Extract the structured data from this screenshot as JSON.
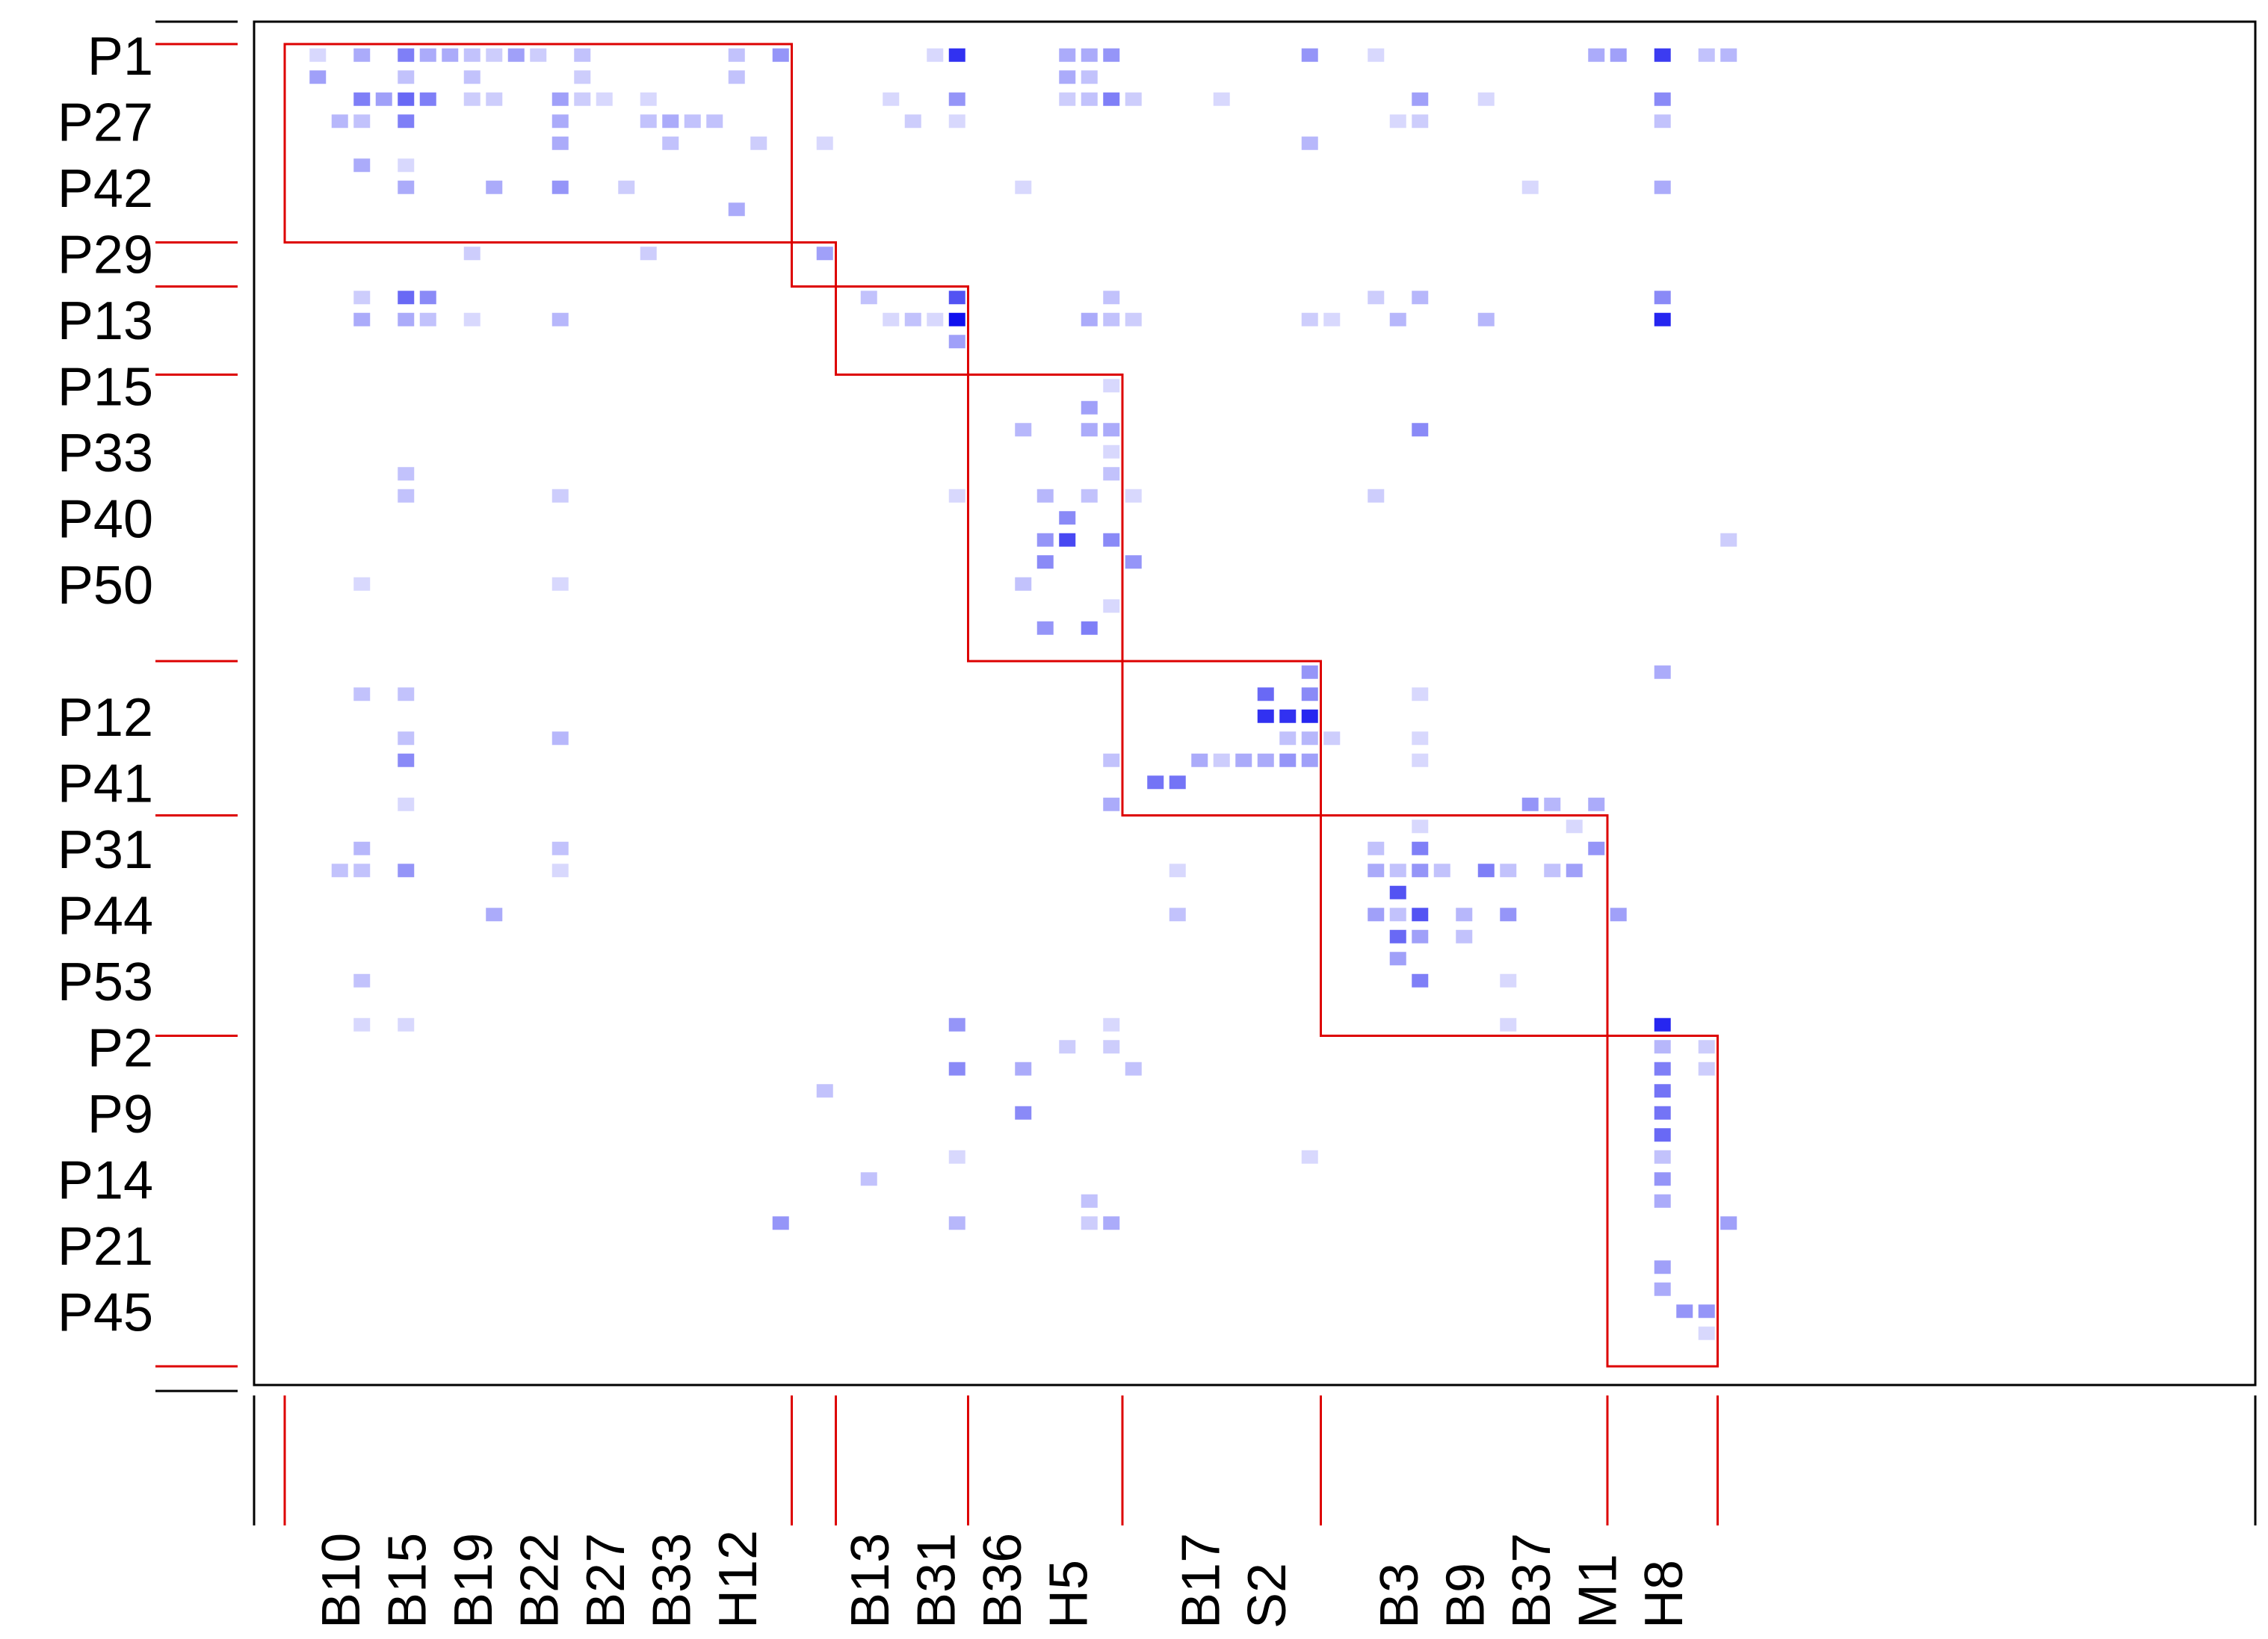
{
  "chart_data": {
    "type": "heatmap",
    "title": "",
    "xlabel": "",
    "ylabel": "",
    "n_rows": 61,
    "n_cols": 66,
    "grid": false,
    "colors": {
      "low": "#eeeeff",
      "high": "#1010ee",
      "block_outline": "#dd0000",
      "frame": "#000000"
    },
    "row_tick_labels": [
      {
        "label": "P1",
        "row": 0
      },
      {
        "label": "P27",
        "row": 3
      },
      {
        "label": "P42",
        "row": 6
      },
      {
        "label": "P29",
        "row": 9
      },
      {
        "label": "P13",
        "row": 12
      },
      {
        "label": "P15",
        "row": 15
      },
      {
        "label": "P33",
        "row": 18
      },
      {
        "label": "P40",
        "row": 21
      },
      {
        "label": "P50",
        "row": 24
      },
      {
        "label": "P12",
        "row": 30
      },
      {
        "label": "P41",
        "row": 33
      },
      {
        "label": "P31",
        "row": 36
      },
      {
        "label": "P44",
        "row": 39
      },
      {
        "label": "P53",
        "row": 42
      },
      {
        "label": "P2",
        "row": 45
      },
      {
        "label": "P9",
        "row": 48
      },
      {
        "label": "P14",
        "row": 51
      },
      {
        "label": "P21",
        "row": 54
      },
      {
        "label": "P45",
        "row": 57
      }
    ],
    "col_tick_labels": [
      {
        "label": "B10",
        "col": 2
      },
      {
        "label": "B15",
        "col": 5
      },
      {
        "label": "B19",
        "col": 8
      },
      {
        "label": "B22",
        "col": 11
      },
      {
        "label": "B27",
        "col": 14
      },
      {
        "label": "B33",
        "col": 17
      },
      {
        "label": "H12",
        "col": 20
      },
      {
        "label": "B13",
        "col": 26
      },
      {
        "label": "B31",
        "col": 29
      },
      {
        "label": "B36",
        "col": 32
      },
      {
        "label": "H5",
        "col": 35
      },
      {
        "label": "B17",
        "col": 41
      },
      {
        "label": "S2",
        "col": 44
      },
      {
        "label": "B3",
        "col": 50
      },
      {
        "label": "B9",
        "col": 53
      },
      {
        "label": "B37",
        "col": 56
      },
      {
        "label": "M1",
        "col": 59
      },
      {
        "label": "H8",
        "col": 62
      }
    ],
    "row_block_boundaries": [
      0,
      9,
      11,
      15,
      28,
      35,
      45,
      60
    ],
    "col_block_boundaries": [
      0,
      23,
      25,
      31,
      38,
      47,
      60,
      65
    ],
    "blocks": [
      {
        "rows": [
          0,
          9
        ],
        "cols": [
          0,
          23
        ]
      },
      {
        "rows": [
          9,
          11
        ],
        "cols": [
          23,
          25
        ]
      },
      {
        "rows": [
          11,
          15
        ],
        "cols": [
          25,
          31
        ]
      },
      {
        "rows": [
          15,
          28
        ],
        "cols": [
          31,
          38
        ]
      },
      {
        "rows": [
          28,
          35
        ],
        "cols": [
          38,
          47
        ]
      },
      {
        "rows": [
          35,
          45
        ],
        "cols": [
          47,
          60
        ]
      },
      {
        "rows": [
          45,
          60
        ],
        "cols": [
          60,
          65
        ]
      }
    ],
    "cells": [
      [
        0,
        1,
        0.1
      ],
      [
        0,
        3,
        0.3
      ],
      [
        0,
        5,
        0.5
      ],
      [
        0,
        6,
        0.3
      ],
      [
        0,
        7,
        0.3
      ],
      [
        0,
        8,
        0.2
      ],
      [
        0,
        9,
        0.15
      ],
      [
        0,
        10,
        0.35
      ],
      [
        0,
        11,
        0.15
      ],
      [
        0,
        13,
        0.2
      ],
      [
        0,
        20,
        0.2
      ],
      [
        0,
        22,
        0.4
      ],
      [
        0,
        29,
        0.1
      ],
      [
        0,
        30,
        0.85
      ],
      [
        0,
        35,
        0.3
      ],
      [
        0,
        36,
        0.3
      ],
      [
        0,
        37,
        0.4
      ],
      [
        0,
        46,
        0.4
      ],
      [
        0,
        49,
        0.1
      ],
      [
        0,
        59,
        0.3
      ],
      [
        0,
        60,
        0.35
      ],
      [
        0,
        62,
        0.8
      ],
      [
        0,
        64,
        0.2
      ],
      [
        0,
        65,
        0.25
      ],
      [
        1,
        1,
        0.35
      ],
      [
        1,
        5,
        0.2
      ],
      [
        1,
        8,
        0.2
      ],
      [
        1,
        13,
        0.15
      ],
      [
        1,
        20,
        0.2
      ],
      [
        1,
        35,
        0.3
      ],
      [
        1,
        36,
        0.2
      ],
      [
        2,
        3,
        0.5
      ],
      [
        2,
        4,
        0.35
      ],
      [
        2,
        5,
        0.6
      ],
      [
        2,
        6,
        0.5
      ],
      [
        2,
        8,
        0.15
      ],
      [
        2,
        9,
        0.15
      ],
      [
        2,
        12,
        0.35
      ],
      [
        2,
        13,
        0.15
      ],
      [
        2,
        14,
        0.1
      ],
      [
        2,
        16,
        0.1
      ],
      [
        2,
        27,
        0.1
      ],
      [
        2,
        30,
        0.4
      ],
      [
        2,
        35,
        0.15
      ],
      [
        2,
        36,
        0.2
      ],
      [
        2,
        37,
        0.5
      ],
      [
        2,
        38,
        0.15
      ],
      [
        2,
        42,
        0.1
      ],
      [
        2,
        51,
        0.35
      ],
      [
        2,
        54,
        0.1
      ],
      [
        2,
        62,
        0.45
      ],
      [
        3,
        2,
        0.25
      ],
      [
        3,
        3,
        0.2
      ],
      [
        3,
        5,
        0.5
      ],
      [
        3,
        12,
        0.3
      ],
      [
        3,
        16,
        0.2
      ],
      [
        3,
        17,
        0.3
      ],
      [
        3,
        18,
        0.2
      ],
      [
        3,
        19,
        0.2
      ],
      [
        3,
        28,
        0.15
      ],
      [
        3,
        30,
        0.1
      ],
      [
        3,
        50,
        0.1
      ],
      [
        3,
        51,
        0.15
      ],
      [
        3,
        62,
        0.2
      ],
      [
        4,
        12,
        0.3
      ],
      [
        4,
        17,
        0.2
      ],
      [
        4,
        21,
        0.15
      ],
      [
        4,
        24,
        0.1
      ],
      [
        4,
        46,
        0.25
      ],
      [
        5,
        3,
        0.3
      ],
      [
        5,
        5,
        0.1
      ],
      [
        6,
        5,
        0.3
      ],
      [
        6,
        9,
        0.3
      ],
      [
        6,
        12,
        0.4
      ],
      [
        6,
        15,
        0.15
      ],
      [
        6,
        33,
        0.1
      ],
      [
        6,
        56,
        0.1
      ],
      [
        6,
        62,
        0.3
      ],
      [
        7,
        20,
        0.3
      ],
      [
        9,
        8,
        0.15
      ],
      [
        9,
        16,
        0.15
      ],
      [
        9,
        24,
        0.35
      ],
      [
        11,
        3,
        0.15
      ],
      [
        11,
        5,
        0.6
      ],
      [
        11,
        6,
        0.45
      ],
      [
        11,
        26,
        0.2
      ],
      [
        11,
        30,
        0.7
      ],
      [
        11,
        37,
        0.2
      ],
      [
        11,
        49,
        0.15
      ],
      [
        11,
        51,
        0.25
      ],
      [
        11,
        62,
        0.45
      ],
      [
        12,
        3,
        0.3
      ],
      [
        12,
        5,
        0.3
      ],
      [
        12,
        6,
        0.2
      ],
      [
        12,
        8,
        0.1
      ],
      [
        12,
        12,
        0.25
      ],
      [
        12,
        27,
        0.1
      ],
      [
        12,
        28,
        0.2
      ],
      [
        12,
        29,
        0.1
      ],
      [
        12,
        30,
        1.0
      ],
      [
        12,
        36,
        0.3
      ],
      [
        12,
        37,
        0.2
      ],
      [
        12,
        38,
        0.15
      ],
      [
        12,
        46,
        0.15
      ],
      [
        12,
        47,
        0.1
      ],
      [
        12,
        50,
        0.25
      ],
      [
        12,
        54,
        0.25
      ],
      [
        12,
        62,
        0.9
      ],
      [
        13,
        30,
        0.35
      ],
      [
        15,
        37,
        0.1
      ],
      [
        16,
        36,
        0.35
      ],
      [
        17,
        33,
        0.25
      ],
      [
        17,
        36,
        0.3
      ],
      [
        17,
        37,
        0.3
      ],
      [
        17,
        51,
        0.45
      ],
      [
        18,
        37,
        0.1
      ],
      [
        19,
        5,
        0.2
      ],
      [
        19,
        37,
        0.2
      ],
      [
        20,
        5,
        0.2
      ],
      [
        20,
        12,
        0.15
      ],
      [
        20,
        30,
        0.1
      ],
      [
        20,
        34,
        0.25
      ],
      [
        20,
        36,
        0.2
      ],
      [
        20,
        38,
        0.1
      ],
      [
        20,
        49,
        0.15
      ],
      [
        21,
        35,
        0.45
      ],
      [
        22,
        34,
        0.4
      ],
      [
        22,
        35,
        0.75
      ],
      [
        22,
        37,
        0.45
      ],
      [
        22,
        65,
        0.15
      ],
      [
        23,
        34,
        0.45
      ],
      [
        23,
        38,
        0.4
      ],
      [
        24,
        3,
        0.1
      ],
      [
        24,
        12,
        0.1
      ],
      [
        24,
        33,
        0.2
      ],
      [
        25,
        37,
        0.1
      ],
      [
        26,
        34,
        0.4
      ],
      [
        26,
        36,
        0.5
      ],
      [
        28,
        46,
        0.4
      ],
      [
        28,
        62,
        0.3
      ],
      [
        29,
        3,
        0.2
      ],
      [
        29,
        5,
        0.2
      ],
      [
        29,
        44,
        0.6
      ],
      [
        29,
        46,
        0.45
      ],
      [
        29,
        51,
        0.1
      ],
      [
        30,
        44,
        0.85
      ],
      [
        30,
        45,
        0.85
      ],
      [
        30,
        46,
        0.9
      ],
      [
        31,
        5,
        0.2
      ],
      [
        31,
        12,
        0.25
      ],
      [
        31,
        45,
        0.2
      ],
      [
        31,
        46,
        0.25
      ],
      [
        31,
        47,
        0.15
      ],
      [
        31,
        51,
        0.1
      ],
      [
        32,
        5,
        0.45
      ],
      [
        32,
        37,
        0.2
      ],
      [
        32,
        41,
        0.3
      ],
      [
        32,
        42,
        0.15
      ],
      [
        32,
        43,
        0.3
      ],
      [
        32,
        44,
        0.3
      ],
      [
        32,
        45,
        0.4
      ],
      [
        32,
        46,
        0.35
      ],
      [
        32,
        51,
        0.1
      ],
      [
        33,
        39,
        0.55
      ],
      [
        33,
        40,
        0.55
      ],
      [
        34,
        5,
        0.1
      ],
      [
        34,
        37,
        0.3
      ],
      [
        34,
        56,
        0.4
      ],
      [
        34,
        57,
        0.25
      ],
      [
        34,
        59,
        0.3
      ],
      [
        35,
        51,
        0.1
      ],
      [
        35,
        58,
        0.1
      ],
      [
        36,
        3,
        0.25
      ],
      [
        36,
        12,
        0.2
      ],
      [
        36,
        49,
        0.2
      ],
      [
        36,
        51,
        0.5
      ],
      [
        36,
        59,
        0.4
      ],
      [
        37,
        2,
        0.2
      ],
      [
        37,
        3,
        0.2
      ],
      [
        37,
        5,
        0.4
      ],
      [
        37,
        12,
        0.1
      ],
      [
        37,
        40,
        0.1
      ],
      [
        37,
        49,
        0.3
      ],
      [
        37,
        50,
        0.2
      ],
      [
        37,
        51,
        0.4
      ],
      [
        37,
        52,
        0.2
      ],
      [
        37,
        54,
        0.5
      ],
      [
        37,
        55,
        0.2
      ],
      [
        37,
        57,
        0.2
      ],
      [
        37,
        58,
        0.35
      ],
      [
        38,
        50,
        0.7
      ],
      [
        39,
        9,
        0.3
      ],
      [
        39,
        40,
        0.2
      ],
      [
        39,
        49,
        0.35
      ],
      [
        39,
        50,
        0.2
      ],
      [
        39,
        51,
        0.7
      ],
      [
        39,
        53,
        0.25
      ],
      [
        39,
        55,
        0.4
      ],
      [
        39,
        60,
        0.35
      ],
      [
        40,
        50,
        0.6
      ],
      [
        40,
        51,
        0.35
      ],
      [
        40,
        53,
        0.2
      ],
      [
        41,
        50,
        0.35
      ],
      [
        42,
        3,
        0.2
      ],
      [
        42,
        51,
        0.5
      ],
      [
        42,
        55,
        0.1
      ],
      [
        44,
        3,
        0.1
      ],
      [
        44,
        5,
        0.1
      ],
      [
        44,
        30,
        0.4
      ],
      [
        44,
        37,
        0.1
      ],
      [
        44,
        55,
        0.1
      ],
      [
        44,
        62,
        0.9
      ],
      [
        45,
        35,
        0.15
      ],
      [
        45,
        37,
        0.15
      ],
      [
        45,
        62,
        0.25
      ],
      [
        45,
        64,
        0.15
      ],
      [
        46,
        30,
        0.45
      ],
      [
        46,
        33,
        0.3
      ],
      [
        46,
        38,
        0.2
      ],
      [
        46,
        62,
        0.5
      ],
      [
        46,
        64,
        0.15
      ],
      [
        47,
        24,
        0.2
      ],
      [
        47,
        62,
        0.55
      ],
      [
        48,
        33,
        0.45
      ],
      [
        48,
        62,
        0.55
      ],
      [
        49,
        62,
        0.6
      ],
      [
        50,
        30,
        0.1
      ],
      [
        50,
        46,
        0.1
      ],
      [
        50,
        62,
        0.2
      ],
      [
        51,
        26,
        0.2
      ],
      [
        51,
        62,
        0.4
      ],
      [
        52,
        36,
        0.2
      ],
      [
        52,
        62,
        0.3
      ],
      [
        53,
        22,
        0.4
      ],
      [
        53,
        30,
        0.25
      ],
      [
        53,
        36,
        0.15
      ],
      [
        53,
        37,
        0.3
      ],
      [
        53,
        65,
        0.35
      ],
      [
        55,
        62,
        0.35
      ],
      [
        56,
        62,
        0.3
      ],
      [
        57,
        63,
        0.4
      ],
      [
        57,
        64,
        0.4
      ],
      [
        58,
        64,
        0.1
      ]
    ]
  }
}
